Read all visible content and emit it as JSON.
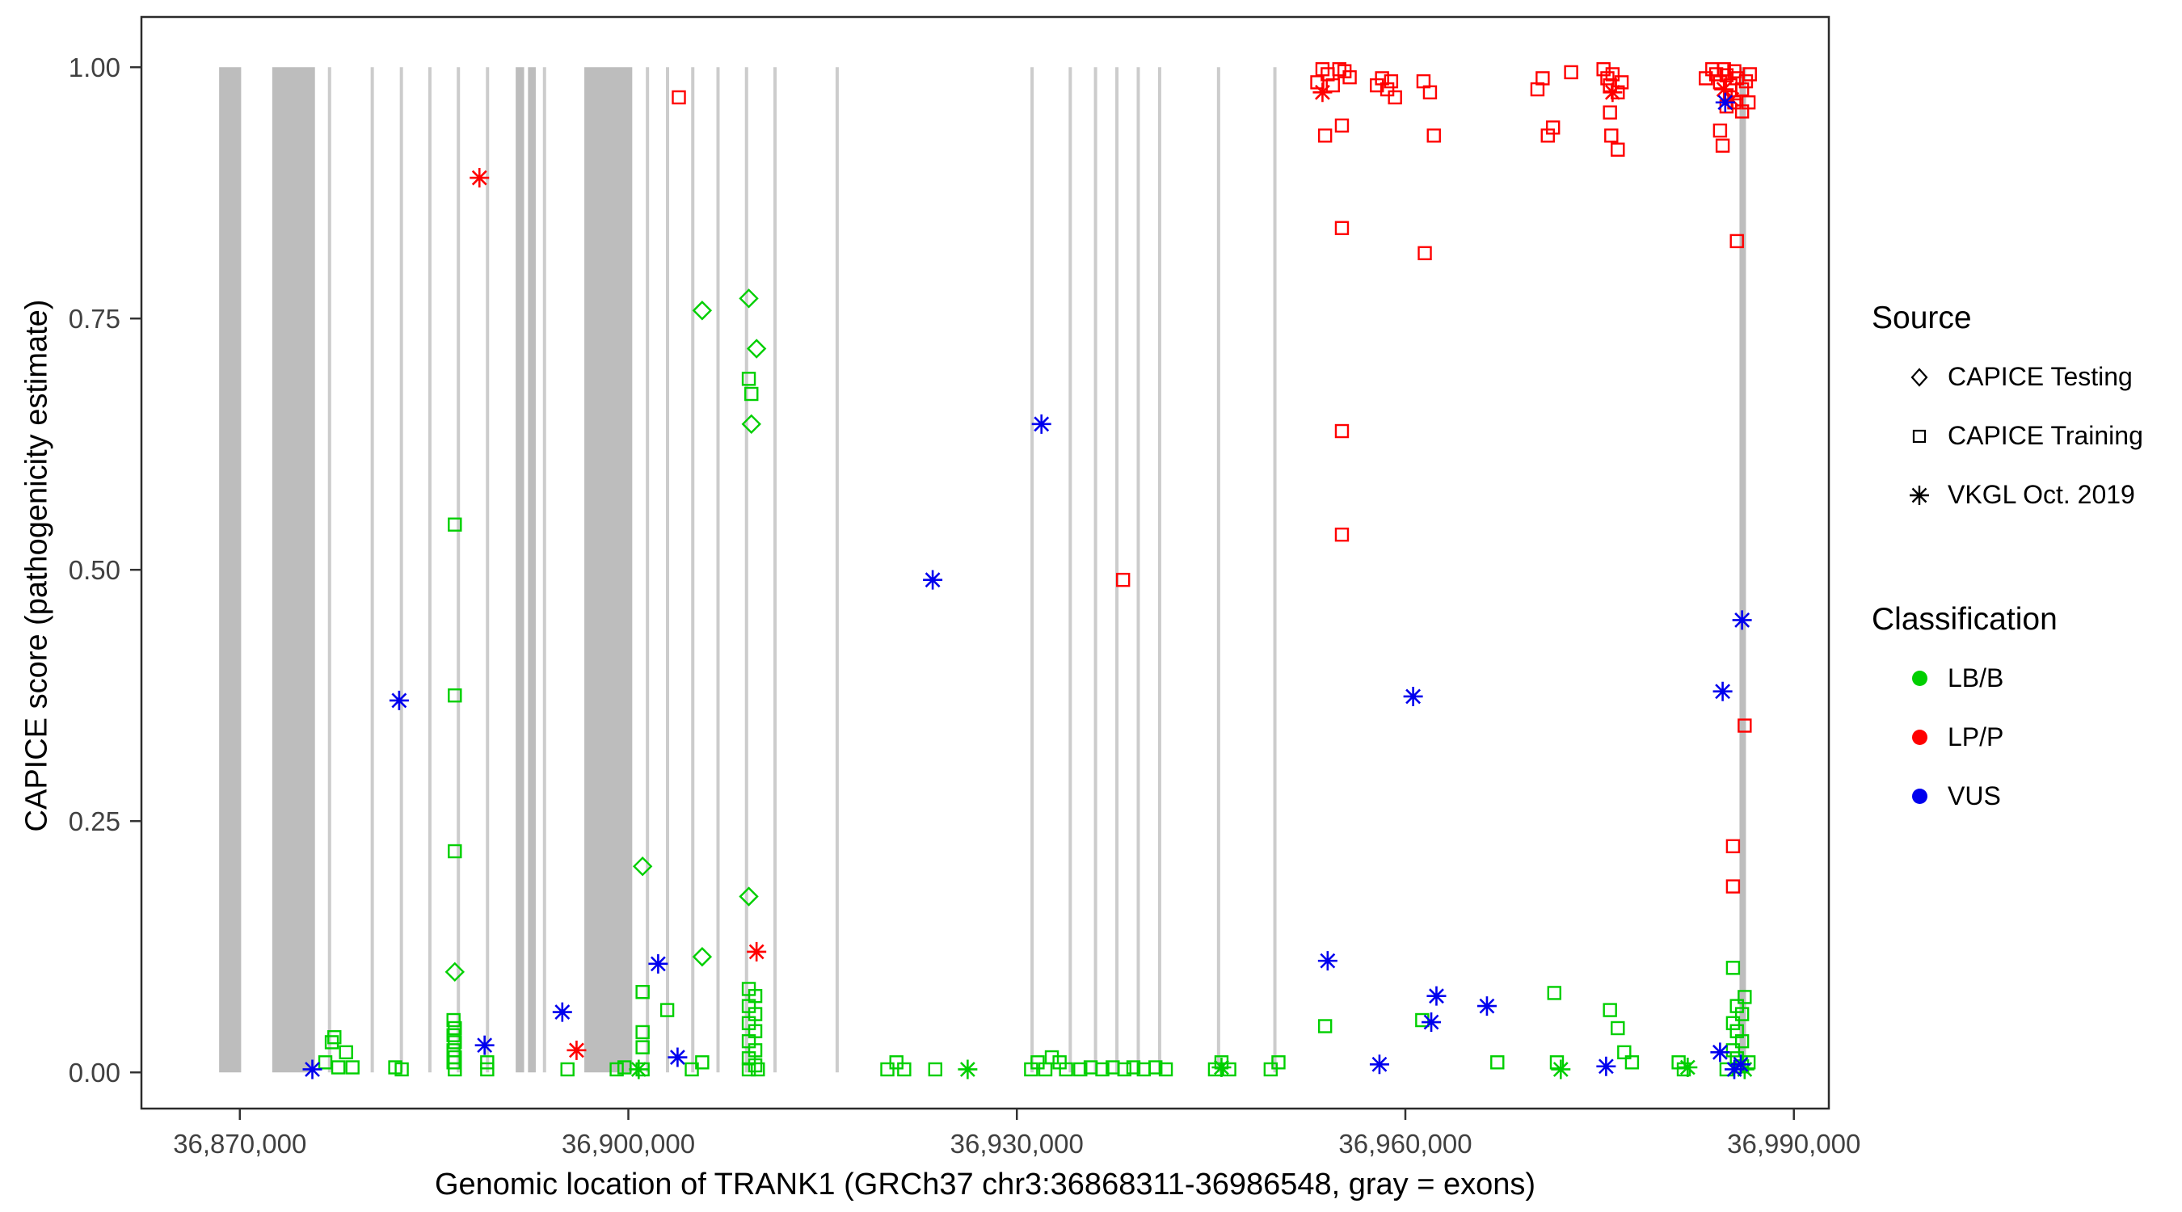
{
  "legend": {
    "source": {
      "title": "Source",
      "items": [
        {
          "label": "CAPICE Testing",
          "shape": "diamond"
        },
        {
          "label": "CAPICE Training",
          "shape": "square"
        },
        {
          "label": "VKGL Oct. 2019",
          "shape": "asterisk"
        }
      ]
    },
    "classification": {
      "title": "Classification",
      "items": [
        {
          "label": "LB/B",
          "color": "#00CF00"
        },
        {
          "label": "LP/P",
          "color": "#FF0000"
        },
        {
          "label": "VUS",
          "color": "#0000EE"
        }
      ]
    }
  },
  "chart_data": {
    "type": "scatter",
    "title": "",
    "xlabel": "Genomic location of TRANK1 (GRCh37 chr3:36868311-36986548, gray = exons)",
    "ylabel": "CAPICE score (pathogenicity estimate)",
    "xlim": [
      36862400,
      36992700
    ],
    "ylim": [
      -0.036,
      1.05
    ],
    "x_ticks": [
      {
        "value": 36870000,
        "label": "36,870,000"
      },
      {
        "value": 36900000,
        "label": "36,900,000"
      },
      {
        "value": 36930000,
        "label": "36,930,000"
      },
      {
        "value": 36960000,
        "label": "36,960,000"
      },
      {
        "value": 36990000,
        "label": "36,990,000"
      }
    ],
    "y_ticks": [
      {
        "value": 0,
        "label": "0.00"
      },
      {
        "value": 0.25,
        "label": "0.25"
      },
      {
        "value": 0.5,
        "label": "0.50"
      },
      {
        "value": 0.75,
        "label": "0.75"
      },
      {
        "value": 1,
        "label": "1.00"
      }
    ],
    "exon_color_wide": "#BDBDBD",
    "exon_color_narrow": "#CCCCCC",
    "exons": [
      {
        "start": 36868400,
        "end": 36870100
      },
      {
        "start": 36872500,
        "end": 36875800
      },
      {
        "start": 36876800,
        "end": 36877050
      },
      {
        "start": 36880100,
        "end": 36880350
      },
      {
        "start": 36882350,
        "end": 36882600
      },
      {
        "start": 36884550,
        "end": 36884800
      },
      {
        "start": 36886750,
        "end": 36887000
      },
      {
        "start": 36889000,
        "end": 36889250
      },
      {
        "start": 36891300,
        "end": 36891950
      },
      {
        "start": 36892250,
        "end": 36892850
      },
      {
        "start": 36893400,
        "end": 36893650
      },
      {
        "start": 36896600,
        "end": 36900300
      },
      {
        "start": 36901350,
        "end": 36901600
      },
      {
        "start": 36902900,
        "end": 36903150
      },
      {
        "start": 36904850,
        "end": 36905100
      },
      {
        "start": 36906800,
        "end": 36907050
      },
      {
        "start": 36909000,
        "end": 36909250
      },
      {
        "start": 36911200,
        "end": 36911450
      },
      {
        "start": 36916000,
        "end": 36916250
      },
      {
        "start": 36931050,
        "end": 36931300
      },
      {
        "start": 36934000,
        "end": 36934250
      },
      {
        "start": 36935950,
        "end": 36936200
      },
      {
        "start": 36937600,
        "end": 36937850
      },
      {
        "start": 36939250,
        "end": 36939500
      },
      {
        "start": 36940900,
        "end": 36941150
      },
      {
        "start": 36945450,
        "end": 36945700
      },
      {
        "start": 36949800,
        "end": 36950050
      },
      {
        "start": 36985800,
        "end": 36986300
      }
    ],
    "series": [
      {
        "name": "CAPICE Testing LB/B",
        "source": "CAPICE Testing",
        "classification": "LB/B",
        "shape": "diamond",
        "color": "#00CF00",
        "points": [
          [
            36886600,
            0.1
          ],
          [
            36901100,
            0.205
          ],
          [
            36905700,
            0.758
          ],
          [
            36905700,
            0.115
          ],
          [
            36909300,
            0.77
          ],
          [
            36909900,
            0.72
          ],
          [
            36909500,
            0.645
          ],
          [
            36909300,
            0.175
          ]
        ]
      },
      {
        "name": "CAPICE Training LB/B",
        "source": "CAPICE Training",
        "classification": "LB/B",
        "shape": "square",
        "color": "#00CF00",
        "points": [
          [
            36876600,
            0.01
          ],
          [
            36877100,
            0.03
          ],
          [
            36877600,
            0.005
          ],
          [
            36878200,
            0.02
          ],
          [
            36878700,
            0.005
          ],
          [
            36877300,
            0.035
          ],
          [
            36882000,
            0.005
          ],
          [
            36882500,
            0.003
          ],
          [
            36886600,
            0.545
          ],
          [
            36886600,
            0.375
          ],
          [
            36886600,
            0.22
          ],
          [
            36886500,
            0.052
          ],
          [
            36886600,
            0.044
          ],
          [
            36886500,
            0.037
          ],
          [
            36886600,
            0.03
          ],
          [
            36886500,
            0.022
          ],
          [
            36886600,
            0.015
          ],
          [
            36886500,
            0.01
          ],
          [
            36886600,
            0.003
          ],
          [
            36889100,
            0.01
          ],
          [
            36889100,
            0.003
          ],
          [
            36895300,
            0.003
          ],
          [
            36899100,
            0.003
          ],
          [
            36899700,
            0.005
          ],
          [
            36901100,
            0.08
          ],
          [
            36901100,
            0.04
          ],
          [
            36901100,
            0.025
          ],
          [
            36901100,
            0.003
          ],
          [
            36903000,
            0.062
          ],
          [
            36904900,
            0.003
          ],
          [
            36905700,
            0.01
          ],
          [
            36909300,
            0.69
          ],
          [
            36909500,
            0.675
          ],
          [
            36909300,
            0.083
          ],
          [
            36909800,
            0.076
          ],
          [
            36909300,
            0.066
          ],
          [
            36909800,
            0.058
          ],
          [
            36909300,
            0.049
          ],
          [
            36909800,
            0.041
          ],
          [
            36909300,
            0.031
          ],
          [
            36909800,
            0.022
          ],
          [
            36909300,
            0.014
          ],
          [
            36909800,
            0.007
          ],
          [
            36909300,
            0.003
          ],
          [
            36910000,
            0.003
          ],
          [
            36920000,
            0.003
          ],
          [
            36920700,
            0.01
          ],
          [
            36921300,
            0.003
          ],
          [
            36923700,
            0.003
          ],
          [
            36931100,
            0.003
          ],
          [
            36931600,
            0.01
          ],
          [
            36932200,
            0.003
          ],
          [
            36932700,
            0.015
          ],
          [
            36933300,
            0.01
          ],
          [
            36933800,
            0.003
          ],
          [
            36934900,
            0.003
          ],
          [
            36935700,
            0.005
          ],
          [
            36936600,
            0.003
          ],
          [
            36937400,
            0.005
          ],
          [
            36938300,
            0.003
          ],
          [
            36939000,
            0.005
          ],
          [
            36939800,
            0.003
          ],
          [
            36940700,
            0.005
          ],
          [
            36941500,
            0.003
          ],
          [
            36945300,
            0.003
          ],
          [
            36945800,
            0.01
          ],
          [
            36946400,
            0.003
          ],
          [
            36949600,
            0.003
          ],
          [
            36950200,
            0.01
          ],
          [
            36953800,
            0.046
          ],
          [
            36961300,
            0.052
          ],
          [
            36967100,
            0.01
          ],
          [
            36971500,
            0.079
          ],
          [
            36971700,
            0.01
          ],
          [
            36975800,
            0.062
          ],
          [
            36976400,
            0.044
          ],
          [
            36976900,
            0.02
          ],
          [
            36977500,
            0.01
          ],
          [
            36981100,
            0.01
          ],
          [
            36981500,
            0.003
          ],
          [
            36985300,
            0.104
          ],
          [
            36986200,
            0.075
          ],
          [
            36985600,
            0.066
          ],
          [
            36986000,
            0.058
          ],
          [
            36985300,
            0.049
          ],
          [
            36985600,
            0.041
          ],
          [
            36986000,
            0.031
          ],
          [
            36985300,
            0.022
          ],
          [
            36985600,
            0.014
          ],
          [
            36986000,
            0.006
          ],
          [
            36984800,
            0.003
          ],
          [
            36986500,
            0.01
          ]
        ]
      },
      {
        "name": "CAPICE Training LP/P",
        "source": "CAPICE Training",
        "classification": "LP/P",
        "shape": "square",
        "color": "#FF0000",
        "points": [
          [
            36903900,
            0.97
          ],
          [
            36938200,
            0.49
          ],
          [
            36953200,
            0.985
          ],
          [
            36953600,
            0.998
          ],
          [
            36954000,
            0.993
          ],
          [
            36954400,
            0.982
          ],
          [
            36954900,
            0.998
          ],
          [
            36955300,
            0.996
          ],
          [
            36955700,
            0.99
          ],
          [
            36953800,
            0.932
          ],
          [
            36955100,
            0.942
          ],
          [
            36955100,
            0.84
          ],
          [
            36955100,
            0.638
          ],
          [
            36955100,
            0.535
          ],
          [
            36957800,
            0.982
          ],
          [
            36958200,
            0.989
          ],
          [
            36958600,
            0.978
          ],
          [
            36958900,
            0.986
          ],
          [
            36959200,
            0.97
          ],
          [
            36961400,
            0.986
          ],
          [
            36961900,
            0.975
          ],
          [
            36962200,
            0.932
          ],
          [
            36961500,
            0.815
          ],
          [
            36970200,
            0.978
          ],
          [
            36970600,
            0.989
          ],
          [
            36971000,
            0.932
          ],
          [
            36971400,
            0.94
          ],
          [
            36972800,
            0.995
          ],
          [
            36975300,
            0.998
          ],
          [
            36975600,
            0.989
          ],
          [
            36975800,
            0.982
          ],
          [
            36976000,
            0.993
          ],
          [
            36976400,
            0.975
          ],
          [
            36976700,
            0.985
          ],
          [
            36975800,
            0.955
          ],
          [
            36975900,
            0.932
          ],
          [
            36976400,
            0.918
          ],
          [
            36983200,
            0.989
          ],
          [
            36983700,
            0.998
          ],
          [
            36984000,
            0.993
          ],
          [
            36984300,
            0.985
          ],
          [
            36984600,
            0.998
          ],
          [
            36984800,
            0.992
          ],
          [
            36985100,
            0.982
          ],
          [
            36985400,
            0.996
          ],
          [
            36985600,
            0.989
          ],
          [
            36986000,
            0.978
          ],
          [
            36986300,
            0.986
          ],
          [
            36986600,
            0.993
          ],
          [
            36984800,
            0.961
          ],
          [
            36985400,
            0.965
          ],
          [
            36986000,
            0.956
          ],
          [
            36984300,
            0.937
          ],
          [
            36986500,
            0.965
          ],
          [
            36984500,
            0.922
          ],
          [
            36985600,
            0.827
          ],
          [
            36986200,
            0.345
          ],
          [
            36985300,
            0.225
          ],
          [
            36985300,
            0.185
          ]
        ]
      },
      {
        "name": "VKGL Oct. 2019 LB/B",
        "source": "VKGL Oct. 2019",
        "classification": "LB/B",
        "shape": "asterisk",
        "color": "#00CF00",
        "points": [
          [
            36900800,
            0.003
          ],
          [
            36926200,
            0.003
          ],
          [
            36945800,
            0.005
          ],
          [
            36972000,
            0.003
          ],
          [
            36981800,
            0.005
          ],
          [
            36986200,
            0.003
          ]
        ]
      },
      {
        "name": "VKGL Oct. 2019 LP/P",
        "source": "VKGL Oct. 2019",
        "classification": "LP/P",
        "shape": "asterisk",
        "color": "#FF0000",
        "points": [
          [
            36888500,
            0.89
          ],
          [
            36896000,
            0.022
          ],
          [
            36909900,
            0.12
          ],
          [
            36953600,
            0.975
          ],
          [
            36976000,
            0.975
          ],
          [
            36984600,
            0.978
          ],
          [
            36985200,
            0.968
          ]
        ]
      },
      {
        "name": "VKGL Oct. 2019 VUS",
        "source": "VKGL Oct. 2019",
        "classification": "VUS",
        "shape": "asterisk",
        "color": "#0000EE",
        "points": [
          [
            36875600,
            0.003
          ],
          [
            36882300,
            0.37
          ],
          [
            36888900,
            0.027
          ],
          [
            36894900,
            0.06
          ],
          [
            36902300,
            0.108
          ],
          [
            36903800,
            0.015
          ],
          [
            36923500,
            0.49
          ],
          [
            36931900,
            0.645
          ],
          [
            36954000,
            0.111
          ],
          [
            36958000,
            0.008
          ],
          [
            36960600,
            0.374
          ],
          [
            36962400,
            0.076
          ],
          [
            36962000,
            0.05
          ],
          [
            36966300,
            0.066
          ],
          [
            36975500,
            0.006
          ],
          [
            36984700,
            0.965
          ],
          [
            36984500,
            0.379
          ],
          [
            36986000,
            0.45
          ],
          [
            36984300,
            0.02
          ],
          [
            36985400,
            0.003
          ],
          [
            36985900,
            0.008
          ]
        ]
      }
    ]
  }
}
